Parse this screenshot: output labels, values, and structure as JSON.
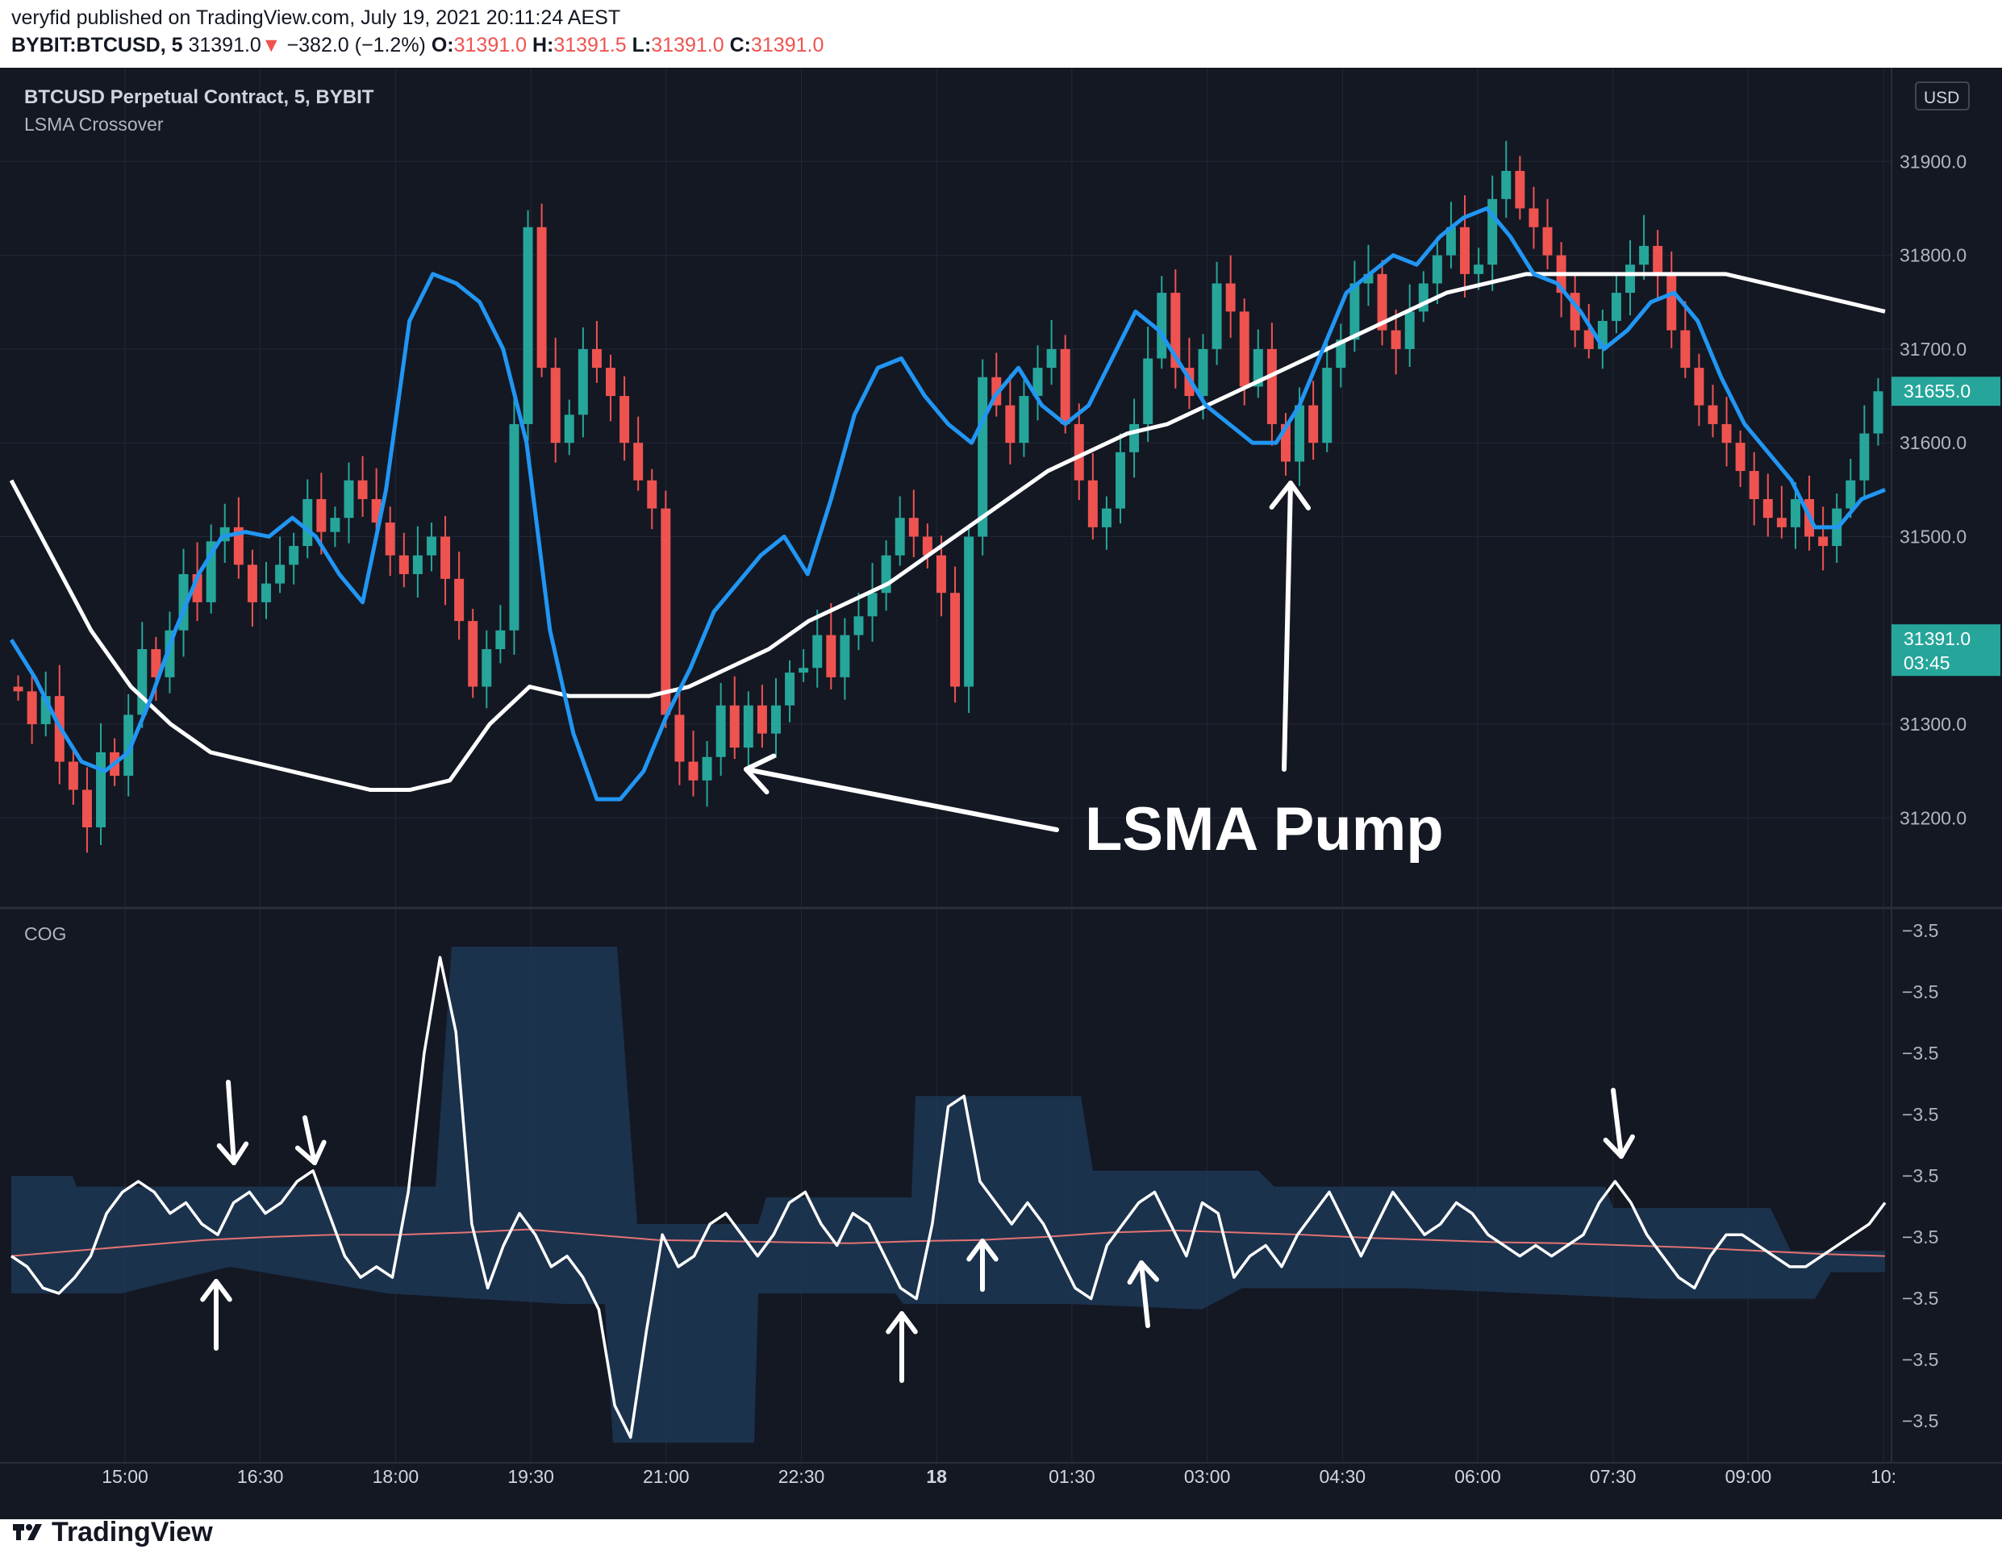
{
  "header": {
    "publisher_line": "veryfid published on TradingView.com, July 19, 2021 20:11:24 AEST",
    "symbol": "BYBIT:BTCUSD, 5",
    "last": "31391.0",
    "change_arrow": "▼",
    "change": "−382.0 (−1.2%)",
    "o_label": "O:",
    "o": "31391.0",
    "h_label": "H:",
    "h": "31391.5",
    "l_label": "L:",
    "l": "31391.0",
    "c_label": "C:",
    "c": "31391.0"
  },
  "footer": {
    "brand": "TradingView"
  },
  "colors": {
    "bg": "#141823",
    "up": "#26a69a",
    "down": "#ef5350",
    "lsma_fast": "#2196f3",
    "lsma_slow": "#ffffff",
    "cog_line": "#ffffff",
    "cog_signal": "#e57373",
    "band": "#1d3b5c"
  },
  "chart_data": [
    {
      "type": "candlestick",
      "title": "BTCUSD Perpetual Contract, 5, BYBIT",
      "subtitle": "LSMA Crossover",
      "currency_badge": "USD",
      "x_tick_labels": [
        "15:00",
        "16:30",
        "18:00",
        "19:30",
        "21:00",
        "22:30",
        "18",
        "01:30",
        "03:00",
        "04:30",
        "06:00",
        "07:30",
        "09:00",
        "10:"
      ],
      "y_tick_labels": [
        "31200.0",
        "31300.0",
        "31500.0",
        "31600.0",
        "31700.0",
        "31800.0",
        "31900.0"
      ],
      "ylim": [
        31110,
        32000
      ],
      "price_labels": [
        {
          "value": 31655.0,
          "text": "31655.0"
        },
        {
          "value": 31391.0,
          "text": "31391.0",
          "sub": "03:45"
        }
      ],
      "candles": [
        [
          31340,
          31335
        ],
        [
          31335,
          31300
        ],
        [
          31300,
          31330
        ],
        [
          31330,
          31260
        ],
        [
          31260,
          31230
        ],
        [
          31230,
          31190
        ],
        [
          31190,
          31270
        ],
        [
          31270,
          31245
        ],
        [
          31245,
          31310
        ],
        [
          31310,
          31380
        ],
        [
          31380,
          31350
        ],
        [
          31350,
          31400
        ],
        [
          31400,
          31460
        ],
        [
          31460,
          31430
        ],
        [
          31430,
          31495
        ],
        [
          31495,
          31510
        ],
        [
          31510,
          31470
        ],
        [
          31470,
          31430
        ],
        [
          31430,
          31450
        ],
        [
          31450,
          31470
        ],
        [
          31470,
          31490
        ],
        [
          31490,
          31540
        ],
        [
          31540,
          31505
        ],
        [
          31505,
          31520
        ],
        [
          31520,
          31560
        ],
        [
          31560,
          31540
        ],
        [
          31540,
          31515
        ],
        [
          31515,
          31480
        ],
        [
          31480,
          31460
        ],
        [
          31460,
          31480
        ],
        [
          31480,
          31500
        ],
        [
          31500,
          31455
        ],
        [
          31455,
          31410
        ],
        [
          31410,
          31340
        ],
        [
          31340,
          31380
        ],
        [
          31380,
          31400
        ],
        [
          31400,
          31620
        ],
        [
          31620,
          31830
        ],
        [
          31830,
          31680
        ],
        [
          31680,
          31600
        ],
        [
          31600,
          31630
        ],
        [
          31630,
          31700
        ],
        [
          31700,
          31680
        ],
        [
          31680,
          31650
        ],
        [
          31650,
          31600
        ],
        [
          31600,
          31560
        ],
        [
          31560,
          31530
        ],
        [
          31530,
          31310
        ],
        [
          31310,
          31260
        ],
        [
          31260,
          31240
        ],
        [
          31240,
          31265
        ],
        [
          31265,
          31320
        ],
        [
          31320,
          31275
        ],
        [
          31275,
          31320
        ],
        [
          31320,
          31290
        ],
        [
          31290,
          31320
        ],
        [
          31320,
          31355
        ],
        [
          31355,
          31360
        ],
        [
          31360,
          31395
        ],
        [
          31395,
          31350
        ],
        [
          31350,
          31395
        ],
        [
          31395,
          31415
        ],
        [
          31415,
          31440
        ],
        [
          31440,
          31480
        ],
        [
          31480,
          31520
        ],
        [
          31520,
          31500
        ],
        [
          31500,
          31480
        ],
        [
          31480,
          31440
        ],
        [
          31440,
          31340
        ],
        [
          31340,
          31500
        ],
        [
          31500,
          31670
        ],
        [
          31670,
          31640
        ],
        [
          31640,
          31600
        ],
        [
          31600,
          31650
        ],
        [
          31650,
          31680
        ],
        [
          31680,
          31700
        ],
        [
          31700,
          31620
        ],
        [
          31620,
          31560
        ],
        [
          31560,
          31510
        ],
        [
          31510,
          31530
        ],
        [
          31530,
          31590
        ],
        [
          31590,
          31620
        ],
        [
          31620,
          31690
        ],
        [
          31690,
          31760
        ],
        [
          31760,
          31680
        ],
        [
          31680,
          31650
        ],
        [
          31650,
          31700
        ],
        [
          31700,
          31770
        ],
        [
          31770,
          31740
        ],
        [
          31740,
          31660
        ],
        [
          31660,
          31700
        ],
        [
          31700,
          31620
        ],
        [
          31620,
          31580
        ],
        [
          31580,
          31640
        ],
        [
          31640,
          31600
        ],
        [
          31600,
          31680
        ],
        [
          31680,
          31710
        ],
        [
          31710,
          31770
        ],
        [
          31770,
          31780
        ],
        [
          31780,
          31720
        ],
        [
          31720,
          31700
        ],
        [
          31700,
          31740
        ],
        [
          31740,
          31770
        ],
        [
          31770,
          31800
        ],
        [
          31800,
          31830
        ],
        [
          31830,
          31780
        ],
        [
          31780,
          31790
        ],
        [
          31790,
          31860
        ],
        [
          31860,
          31890
        ],
        [
          31890,
          31850
        ],
        [
          31850,
          31830
        ],
        [
          31830,
          31800
        ],
        [
          31800,
          31760
        ],
        [
          31760,
          31720
        ],
        [
          31720,
          31700
        ],
        [
          31700,
          31730
        ],
        [
          31730,
          31760
        ],
        [
          31760,
          31790
        ],
        [
          31790,
          31810
        ],
        [
          31810,
          31780
        ],
        [
          31780,
          31720
        ],
        [
          31720,
          31680
        ],
        [
          31680,
          31640
        ],
        [
          31640,
          31620
        ],
        [
          31620,
          31600
        ],
        [
          31600,
          31570
        ],
        [
          31570,
          31540
        ],
        [
          31540,
          31520
        ],
        [
          31520,
          31510
        ],
        [
          31510,
          31540
        ],
        [
          31540,
          31500
        ],
        [
          31500,
          31490
        ],
        [
          31490,
          31530
        ],
        [
          31530,
          31560
        ],
        [
          31560,
          31610
        ],
        [
          31610,
          31655
        ]
      ],
      "series": [
        {
          "name": "",
          "color": "#2196f3",
          "values": [
            31390,
            31350,
            31300,
            31260,
            31250,
            31270,
            31330,
            31400,
            31460,
            31500,
            31505,
            31500,
            31520,
            31500,
            31460,
            31430,
            31550,
            31730,
            31780,
            31770,
            31750,
            31700,
            31600,
            31400,
            31290,
            31220,
            31220,
            31250,
            31310,
            31360,
            31420,
            31450,
            31480,
            31500,
            31460,
            31540,
            31630,
            31680,
            31690,
            31650,
            31620,
            31600,
            31650,
            31680,
            31640,
            31620,
            31640,
            31690,
            31740,
            31720,
            31680,
            31640,
            31620,
            31600,
            31600,
            31640,
            31700,
            31760,
            31780,
            31800,
            31790,
            31820,
            31840,
            31850,
            31820,
            31780,
            31770,
            31740,
            31700,
            31720,
            31750,
            31760,
            31730,
            31670,
            31620,
            31590,
            31560,
            31510,
            31510,
            31540,
            31550
          ]
        },
        {
          "name": "",
          "color": "#ffffff",
          "values": [
            31560,
            31480,
            31400,
            31340,
            31300,
            31270,
            31260,
            31250,
            31240,
            31230,
            31230,
            31240,
            31300,
            31340,
            31330,
            31330,
            31330,
            31340,
            31360,
            31380,
            31410,
            31430,
            31450,
            31480,
            31510,
            31540,
            31570,
            31590,
            31610,
            31620,
            31640,
            31660,
            31680,
            31700,
            31720,
            31740,
            31760,
            31770,
            31780,
            31780,
            31780,
            31780,
            31780,
            31780,
            31770,
            31760,
            31750,
            31740
          ]
        }
      ],
      "annotations": [
        {
          "text": "LSMA Pump"
        }
      ]
    },
    {
      "type": "line",
      "title": "COG",
      "y_tick_labels": [
        "−3.5",
        "−3.5",
        "−3.5",
        "−3.5",
        "−3.5",
        "−3.5",
        "−3.5",
        "−3.5",
        "−3.5"
      ],
      "series": [
        {
          "name": "",
          "color": "#ffffff",
          "values": [
            -3.1,
            -3.2,
            -3.4,
            -3.45,
            -3.3,
            -3.1,
            -2.7,
            -2.5,
            -2.4,
            -2.5,
            -2.7,
            -2.6,
            -2.8,
            -2.9,
            -2.6,
            -2.5,
            -2.7,
            -2.6,
            -2.4,
            -2.3,
            -2.7,
            -3.1,
            -3.3,
            -3.2,
            -3.3,
            -2.5,
            -1.2,
            -0.3,
            -1.0,
            -2.8,
            -3.4,
            -3.0,
            -2.7,
            -2.9,
            -3.2,
            -3.1,
            -3.3,
            -3.6,
            -4.5,
            -4.8,
            -3.8,
            -2.9,
            -3.2,
            -3.1,
            -2.8,
            -2.7,
            -2.9,
            -3.1,
            -2.9,
            -2.6,
            -2.5,
            -2.8,
            -3.0,
            -2.7,
            -2.8,
            -3.1,
            -3.4,
            -3.5,
            -2.8,
            -1.7,
            -1.6,
            -2.4,
            -2.6,
            -2.8,
            -2.6,
            -2.8,
            -3.1,
            -3.4,
            -3.5,
            -3.0,
            -2.8,
            -2.6,
            -2.5,
            -2.8,
            -3.1,
            -2.6,
            -2.7,
            -3.3,
            -3.1,
            -3.0,
            -3.2,
            -2.9,
            -2.7,
            -2.5,
            -2.8,
            -3.1,
            -2.8,
            -2.5,
            -2.7,
            -2.9,
            -2.8,
            -2.6,
            -2.7,
            -2.9,
            -3.0,
            -3.1,
            -3.0,
            -3.1,
            -3.0,
            -2.9,
            -2.6,
            -2.4,
            -2.6,
            -2.9,
            -3.1,
            -3.3,
            -3.4,
            -3.1,
            -2.9,
            -2.9,
            -3.0,
            -3.1,
            -3.2,
            -3.2,
            -3.1,
            -3.0,
            -2.9,
            -2.8,
            -2.6
          ]
        },
        {
          "name": "",
          "color": "#e57373",
          "values": [
            -3.1,
            -3.05,
            -3.0,
            -2.95,
            -2.92,
            -2.9,
            -2.9,
            -2.88,
            -2.85,
            -2.9,
            -2.95,
            -2.96,
            -2.97,
            -2.98,
            -2.96,
            -2.95,
            -2.92,
            -2.88,
            -2.86,
            -2.88,
            -2.9,
            -2.93,
            -2.95,
            -2.97,
            -2.98,
            -3.0,
            -3.02,
            -3.05,
            -3.08,
            -3.1
          ]
        }
      ]
    }
  ]
}
